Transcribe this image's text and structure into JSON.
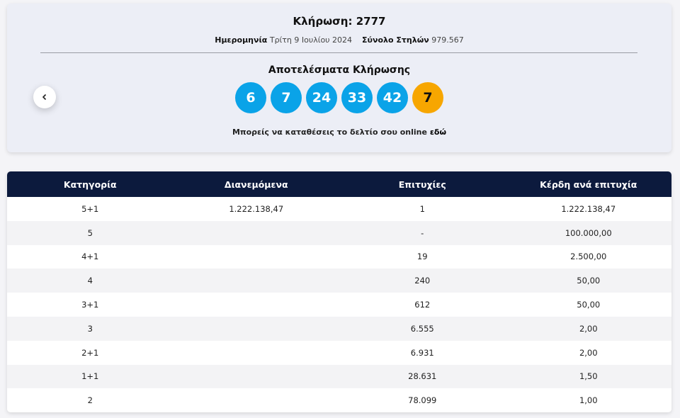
{
  "header": {
    "title": "Κλήρωση: 2777",
    "date_label": "Ημερομηνία",
    "date": "Τρίτη 9 Ιουλίου 2024",
    "columns_label": "Σύνολο Στηλών",
    "columns": "979.567"
  },
  "results": {
    "title": "Αποτελέσματα Κλήρωσης",
    "numbers": [
      6,
      7,
      24,
      33,
      42
    ],
    "joker": 7,
    "online_text": "Μπορείς να καταθέσεις το δελτίο σου online",
    "online_link": "εδώ"
  },
  "table": {
    "headers": [
      "Κατηγορία",
      "Διανεμόμενα",
      "Επιτυχίες",
      "Κέρδη ανά επιτυχία"
    ],
    "rows": [
      [
        "5+1",
        "1.222.138,47",
        "1",
        "1.222.138,47"
      ],
      [
        "5",
        null,
        "-",
        "100.000,00"
      ],
      [
        "4+1",
        null,
        "19",
        "2.500,00"
      ],
      [
        "4",
        null,
        "240",
        "50,00"
      ],
      [
        "3+1",
        null,
        "612",
        "50,00"
      ],
      [
        "3",
        null,
        "6.555",
        "2,00"
      ],
      [
        "2+1",
        null,
        "6.931",
        "2,00"
      ],
      [
        "1+1",
        null,
        "28.631",
        "1,50"
      ],
      [
        "2",
        null,
        "78.099",
        "1,00"
      ]
    ]
  }
}
